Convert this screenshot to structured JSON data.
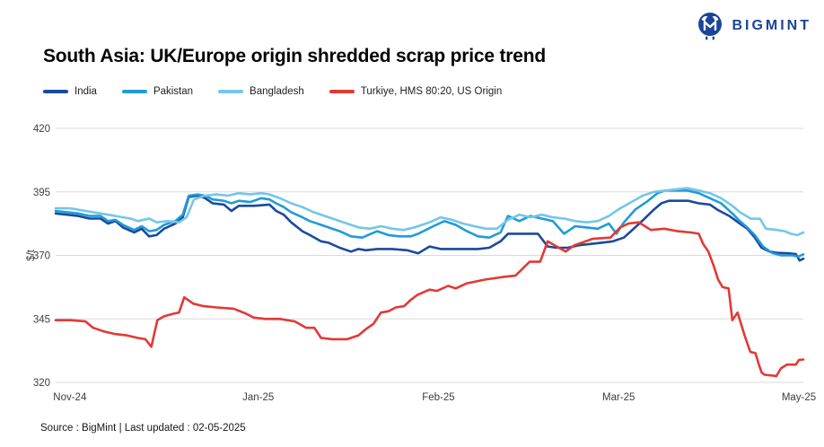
{
  "logo": {
    "text": "BIGMINT"
  },
  "header": {
    "title": "South Asia: UK/Europe origin shredded scrap price trend"
  },
  "legend": {
    "items": [
      {
        "label": "India",
        "color": "#1a4a9c"
      },
      {
        "label": "Pakistan",
        "color": "#209bd8"
      },
      {
        "label": "Bangladesh",
        "color": "#74c6e8"
      },
      {
        "label": "Turkiye, HMS 80:20, US Origin",
        "color": "#e23936"
      }
    ]
  },
  "footer": {
    "source": "Source : BigMint | Last updated : 02-05-2025"
  },
  "chart_data": {
    "type": "line",
    "title": "South Asia: UK/Europe origin shredded scrap price trend",
    "xlabel": "",
    "ylabel": "$/t",
    "ylim": [
      320,
      420
    ],
    "yticks": [
      420,
      395,
      370,
      345,
      320
    ],
    "grid": "horizontal",
    "grid_color": "#d9d9d9",
    "legend_position": "top-left",
    "x_encoding": "percent along x-axis, Nov-24 through May-25",
    "xticks": [
      {
        "label": "Nov-24",
        "pos": 1.9
      },
      {
        "label": "Jan-25",
        "pos": 27.1
      },
      {
        "label": "Feb-25",
        "pos": 51.2
      },
      {
        "label": "Mar-25",
        "pos": 75.3
      },
      {
        "label": "May-25",
        "pos": 99.4
      }
    ],
    "series": [
      {
        "name": "India",
        "color": "#1a4a9c",
        "points": [
          [
            0,
            386.5
          ],
          [
            1.5,
            386
          ],
          [
            3,
            385.5
          ],
          [
            4.5,
            384.5
          ],
          [
            6,
            384.5
          ],
          [
            7,
            382.5
          ],
          [
            8,
            383.5
          ],
          [
            9,
            381
          ],
          [
            10.5,
            379
          ],
          [
            11.5,
            380.5
          ],
          [
            12.5,
            377.5
          ],
          [
            13.5,
            378
          ],
          [
            14.5,
            380.5
          ],
          [
            16,
            382.5
          ],
          [
            17,
            385
          ],
          [
            17.8,
            393
          ],
          [
            19,
            393.5
          ],
          [
            20,
            392.5
          ],
          [
            21,
            390.5
          ],
          [
            22.5,
            390
          ],
          [
            23.5,
            387.5
          ],
          [
            24.5,
            389.5
          ],
          [
            26.5,
            389.5
          ],
          [
            28.6,
            390
          ],
          [
            29.5,
            387.5
          ],
          [
            30.5,
            386
          ],
          [
            31.5,
            383
          ],
          [
            33,
            379.5
          ],
          [
            34,
            378
          ],
          [
            35.5,
            375.5
          ],
          [
            36.5,
            375
          ],
          [
            38,
            373
          ],
          [
            39.5,
            371.5
          ],
          [
            40.5,
            372.5
          ],
          [
            41.5,
            372
          ],
          [
            43,
            372.5
          ],
          [
            45,
            372.5
          ],
          [
            47,
            372
          ],
          [
            48.5,
            370.8
          ],
          [
            50,
            373.5
          ],
          [
            51.5,
            372.5
          ],
          [
            54,
            372.5
          ],
          [
            56.5,
            372.5
          ],
          [
            58,
            373
          ],
          [
            59.5,
            375.5
          ],
          [
            60.5,
            378.5
          ],
          [
            63,
            378.5
          ],
          [
            64.5,
            378.5
          ],
          [
            65.8,
            373.5
          ],
          [
            67,
            373
          ],
          [
            68.5,
            373
          ],
          [
            70,
            374
          ],
          [
            71.5,
            374.5
          ],
          [
            73,
            375
          ],
          [
            74.5,
            375.5
          ],
          [
            76,
            377
          ],
          [
            77.5,
            381
          ],
          [
            78.6,
            384
          ],
          [
            80,
            388
          ],
          [
            81,
            390.5
          ],
          [
            82,
            391.5
          ],
          [
            84.6,
            391.5
          ],
          [
            86,
            390.5
          ],
          [
            87.5,
            390
          ],
          [
            88.5,
            388
          ],
          [
            90.1,
            385.5
          ],
          [
            91.5,
            382.5
          ],
          [
            92.5,
            380.5
          ],
          [
            93.5,
            377
          ],
          [
            94.4,
            373
          ],
          [
            95.5,
            371.5
          ],
          [
            96.5,
            371
          ],
          [
            98,
            370.8
          ],
          [
            99,
            370.5
          ],
          [
            99.5,
            368
          ],
          [
            100,
            368.7
          ]
        ]
      },
      {
        "name": "Pakistan",
        "color": "#209bd8",
        "points": [
          [
            0,
            387.5
          ],
          [
            1.5,
            387
          ],
          [
            3,
            386.5
          ],
          [
            4.5,
            385.5
          ],
          [
            6,
            385.5
          ],
          [
            7,
            383.5
          ],
          [
            8,
            384
          ],
          [
            9,
            382
          ],
          [
            10.5,
            380
          ],
          [
            11.5,
            381.5
          ],
          [
            12.5,
            379.5
          ],
          [
            13.5,
            380
          ],
          [
            14.5,
            382
          ],
          [
            16,
            383.5
          ],
          [
            17,
            386
          ],
          [
            17.8,
            393.5
          ],
          [
            19,
            394
          ],
          [
            20,
            393.5
          ],
          [
            21,
            392
          ],
          [
            22.5,
            391.5
          ],
          [
            23.5,
            390.5
          ],
          [
            24.5,
            391.5
          ],
          [
            26,
            391
          ],
          [
            27.5,
            392.5
          ],
          [
            28.6,
            392
          ],
          [
            29.5,
            390.5
          ],
          [
            30.5,
            389
          ],
          [
            31.5,
            387
          ],
          [
            33,
            385
          ],
          [
            34,
            383.5
          ],
          [
            35.5,
            382
          ],
          [
            36.5,
            381
          ],
          [
            38,
            379.5
          ],
          [
            39.5,
            377.5
          ],
          [
            41,
            377
          ],
          [
            43,
            379.5
          ],
          [
            44.5,
            378
          ],
          [
            46,
            377.5
          ],
          [
            47.5,
            377.5
          ],
          [
            48.5,
            378.5
          ],
          [
            50.5,
            381.5
          ],
          [
            52,
            383.5
          ],
          [
            53.5,
            382
          ],
          [
            55,
            379.5
          ],
          [
            56.5,
            377.5
          ],
          [
            58,
            377
          ],
          [
            59.5,
            379
          ],
          [
            60.5,
            385.5
          ],
          [
            62,
            383.5
          ],
          [
            63.5,
            385.5
          ],
          [
            65,
            384.5
          ],
          [
            66.5,
            383.5
          ],
          [
            68,
            378.5
          ],
          [
            69.5,
            381.5
          ],
          [
            71,
            381
          ],
          [
            72.5,
            380.5
          ],
          [
            74,
            382.5
          ],
          [
            75,
            378.5
          ],
          [
            76,
            383
          ],
          [
            77.5,
            388
          ],
          [
            79,
            391
          ],
          [
            80.5,
            394.5
          ],
          [
            81.5,
            395.5
          ],
          [
            84.5,
            395.5
          ],
          [
            86,
            394.5
          ],
          [
            87.5,
            392.5
          ],
          [
            89,
            390.5
          ],
          [
            90.5,
            386.5
          ],
          [
            91.5,
            383.5
          ],
          [
            92.5,
            381
          ],
          [
            93.5,
            378
          ],
          [
            94.6,
            373.5
          ],
          [
            95.8,
            371
          ],
          [
            97,
            370
          ],
          [
            98.5,
            370
          ],
          [
            99.3,
            369.5
          ],
          [
            100,
            370.4
          ]
        ]
      },
      {
        "name": "Bangladesh",
        "color": "#74c6e8",
        "points": [
          [
            0,
            388.5
          ],
          [
            2,
            388.5
          ],
          [
            4,
            387.5
          ],
          [
            6,
            386.5
          ],
          [
            8,
            385.5
          ],
          [
            10,
            384.5
          ],
          [
            11,
            383.5
          ],
          [
            12.5,
            384.5
          ],
          [
            13.5,
            383
          ],
          [
            15,
            383.5
          ],
          [
            16.5,
            383
          ],
          [
            17.5,
            385
          ],
          [
            18.5,
            392
          ],
          [
            20,
            393.5
          ],
          [
            21.5,
            394
          ],
          [
            23,
            393.5
          ],
          [
            24.5,
            394.5
          ],
          [
            26,
            394
          ],
          [
            27.5,
            394.5
          ],
          [
            28.6,
            394
          ],
          [
            30,
            392.5
          ],
          [
            31.5,
            390.5
          ],
          [
            33,
            389
          ],
          [
            34.5,
            387
          ],
          [
            36,
            385.5
          ],
          [
            37.5,
            384
          ],
          [
            39,
            382.5
          ],
          [
            40.5,
            381
          ],
          [
            42,
            380.5
          ],
          [
            43.5,
            381.5
          ],
          [
            45,
            380.5
          ],
          [
            46.5,
            380
          ],
          [
            48,
            381
          ],
          [
            50,
            383
          ],
          [
            51.5,
            385
          ],
          [
            53,
            384
          ],
          [
            54.5,
            382.5
          ],
          [
            56,
            381.5
          ],
          [
            57.5,
            380.5
          ],
          [
            59,
            380.5
          ],
          [
            60.5,
            384
          ],
          [
            62,
            386
          ],
          [
            63.5,
            385
          ],
          [
            65,
            386
          ],
          [
            66.5,
            385
          ],
          [
            68,
            384.5
          ],
          [
            69.5,
            383.5
          ],
          [
            71,
            383
          ],
          [
            72.5,
            383.5
          ],
          [
            74,
            385.5
          ],
          [
            75.5,
            388.5
          ],
          [
            77,
            391
          ],
          [
            78.5,
            393.5
          ],
          [
            80,
            395
          ],
          [
            81.5,
            395.5
          ],
          [
            83,
            396
          ],
          [
            84.5,
            396.5
          ],
          [
            86,
            395.5
          ],
          [
            87.5,
            394.5
          ],
          [
            89,
            392.5
          ],
          [
            90.5,
            389.5
          ],
          [
            91.5,
            387
          ],
          [
            93,
            384.4
          ],
          [
            94.2,
            384.4
          ],
          [
            95,
            380.5
          ],
          [
            96.5,
            380
          ],
          [
            97.5,
            379.5
          ],
          [
            98.3,
            378.5
          ],
          [
            99.2,
            378
          ],
          [
            100,
            379
          ]
        ]
      },
      {
        "name": "Turkiye, HMS 80:20, US Origin",
        "color": "#e23936",
        "points": [
          [
            0,
            344.5
          ],
          [
            2,
            344.5
          ],
          [
            4,
            344
          ],
          [
            5,
            341.5
          ],
          [
            6.5,
            340
          ],
          [
            8,
            339
          ],
          [
            9.5,
            338.5
          ],
          [
            11,
            337.5
          ],
          [
            12,
            337
          ],
          [
            12.8,
            334
          ],
          [
            13.6,
            344.5
          ],
          [
            14.5,
            346
          ],
          [
            15.7,
            347
          ],
          [
            16.5,
            347.5
          ],
          [
            17.2,
            353.5
          ],
          [
            18.4,
            351
          ],
          [
            19.8,
            350
          ],
          [
            21.5,
            349.5
          ],
          [
            23.8,
            349
          ],
          [
            25.5,
            347
          ],
          [
            26.5,
            345.5
          ],
          [
            28,
            345
          ],
          [
            30,
            345
          ],
          [
            32,
            344
          ],
          [
            33.5,
            341.5
          ],
          [
            34.6,
            341.5
          ],
          [
            35.5,
            337.5
          ],
          [
            37,
            337
          ],
          [
            39,
            337
          ],
          [
            40.5,
            338.5
          ],
          [
            41.5,
            341
          ],
          [
            42.5,
            343
          ],
          [
            43.5,
            347.5
          ],
          [
            44.5,
            348
          ],
          [
            45.5,
            349.5
          ],
          [
            46.6,
            350
          ],
          [
            47.5,
            352.5
          ],
          [
            48.4,
            354.5
          ],
          [
            50,
            356.5
          ],
          [
            51,
            356
          ],
          [
            52.5,
            358
          ],
          [
            53.5,
            357
          ],
          [
            55,
            359
          ],
          [
            57.5,
            360.5
          ],
          [
            59.8,
            361.5
          ],
          [
            61.5,
            362
          ],
          [
            63.4,
            367.5
          ],
          [
            64.8,
            367.5
          ],
          [
            65.8,
            375.5
          ],
          [
            68.2,
            371.5
          ],
          [
            69.4,
            374
          ],
          [
            71.8,
            376.5
          ],
          [
            74.2,
            377
          ],
          [
            75.5,
            381
          ],
          [
            76.6,
            382.5
          ],
          [
            78,
            383
          ],
          [
            79.6,
            380
          ],
          [
            81.4,
            380.5
          ],
          [
            83.2,
            379.5
          ],
          [
            85,
            379
          ],
          [
            86,
            378.5
          ],
          [
            86.6,
            374.5
          ],
          [
            87.3,
            371.5
          ],
          [
            88,
            366
          ],
          [
            88.6,
            360.5
          ],
          [
            89.2,
            357.5
          ],
          [
            90,
            357
          ],
          [
            90.5,
            344.5
          ],
          [
            91.2,
            347.5
          ],
          [
            92.2,
            338
          ],
          [
            92.9,
            332
          ],
          [
            93.6,
            331.5
          ],
          [
            94,
            327.5
          ],
          [
            94.4,
            324
          ],
          [
            94.8,
            323
          ],
          [
            96.4,
            322.5
          ],
          [
            97,
            325.5
          ],
          [
            97.8,
            327
          ],
          [
            99,
            327
          ],
          [
            99.4,
            328.8
          ],
          [
            100,
            329
          ]
        ]
      }
    ]
  }
}
